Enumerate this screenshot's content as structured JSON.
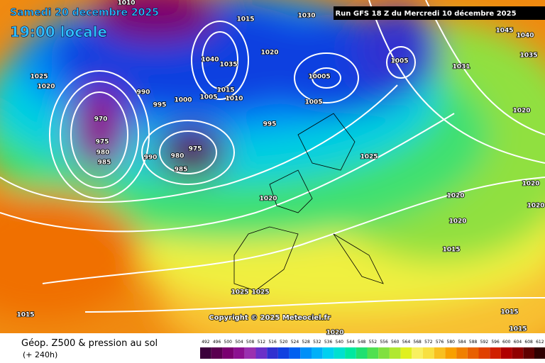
{
  "header": {
    "date": "Samedi 20 decembre 2025",
    "time": "19:00 locale",
    "run": "Run GFS 18 Z du Mercredi 10 décembre 2025"
  },
  "copyright": "Copyright © 2025 Meteociel.fr",
  "footer": {
    "title": "Géop. Z500 & pression au sol",
    "lead": "(+ 240h)"
  },
  "isobar_labels": [
    1010,
    1015,
    1030,
    1045,
    1040,
    1020,
    1005,
    1035,
    1031,
    1025,
    1020,
    990,
    1000,
    1005,
    1015,
    1010,
    995,
    10005,
    1005,
    970,
    975,
    980,
    985,
    990,
    980,
    975,
    985,
    995,
    1025,
    1020,
    1020,
    1020,
    1020,
    1020,
    1020,
    1015,
    1025,
    1025,
    1015,
    1015,
    1015,
    1020,
    1035,
    1040
  ],
  "scale": {
    "values": [
      492,
      496,
      500,
      504,
      508,
      512,
      516,
      520,
      524,
      528,
      532,
      536,
      540,
      544,
      548,
      552,
      556,
      560,
      564,
      568,
      572,
      576,
      580,
      584,
      588,
      592,
      596,
      600,
      604,
      608,
      612
    ],
    "colors": [
      "#3c003c",
      "#5a0050",
      "#7a0070",
      "#8c1090",
      "#9a30b0",
      "#6a30c8",
      "#3030d0",
      "#1040e0",
      "#0060f0",
      "#0090f8",
      "#00b0f8",
      "#00d0f0",
      "#00e0d0",
      "#00e8a0",
      "#20e070",
      "#50e050",
      "#80e040",
      "#b0e830",
      "#e0f020",
      "#f8f060",
      "#f8e040",
      "#f8c020",
      "#f8a000",
      "#f08000",
      "#e86000",
      "#e04000",
      "#d02000",
      "#b00000",
      "#900000",
      "#600000",
      "#300000"
    ]
  }
}
